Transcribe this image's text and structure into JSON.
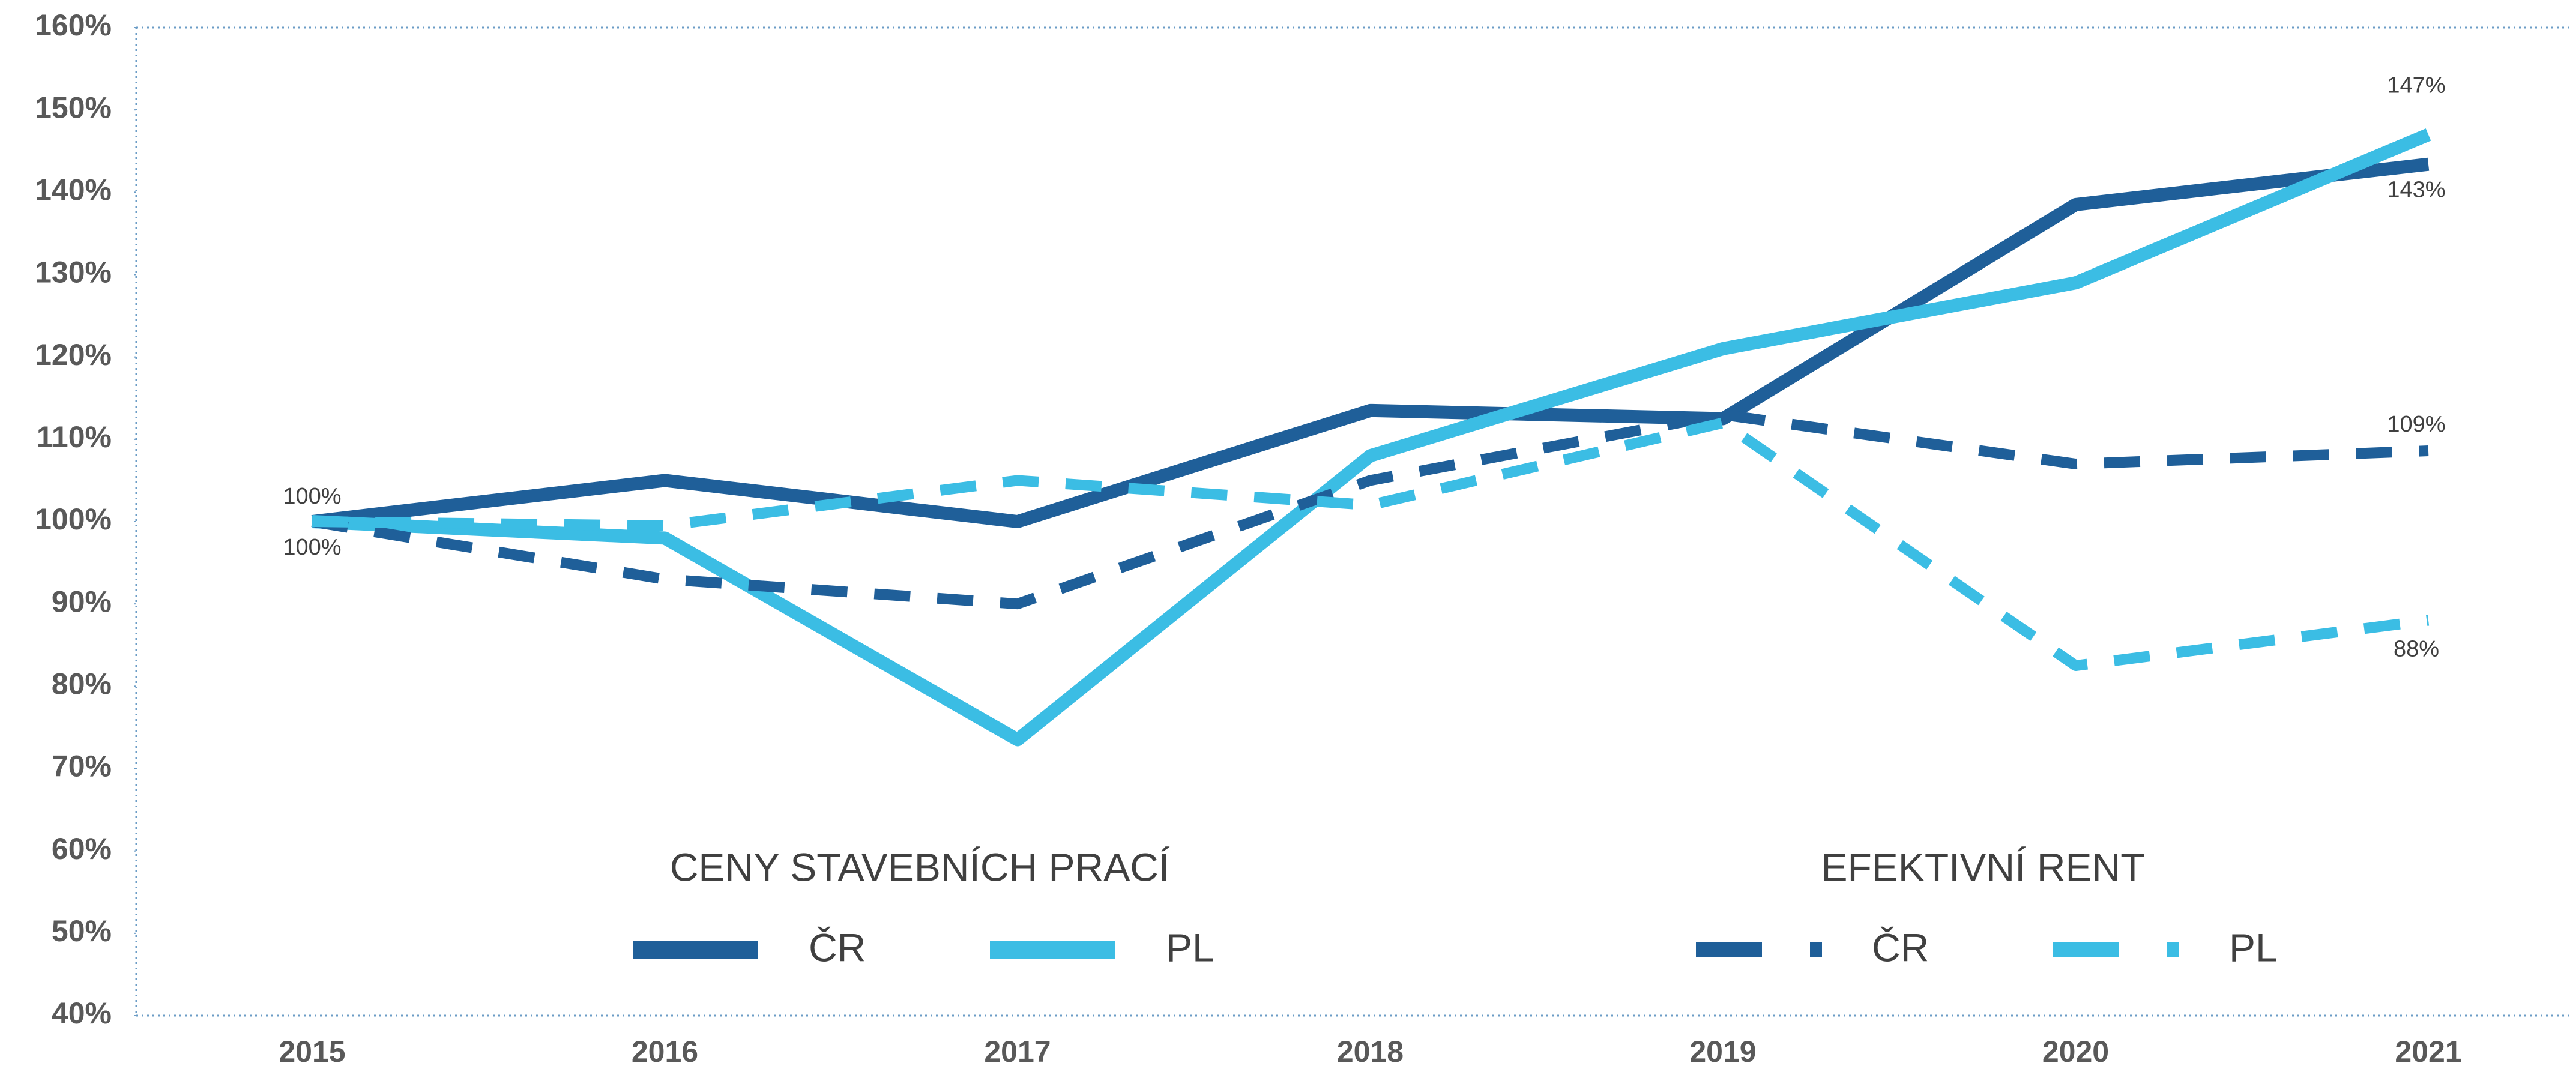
{
  "chart_data": {
    "type": "line",
    "categories": [
      "2015",
      "2016",
      "2017",
      "2018",
      "2019",
      "2020",
      "2021"
    ],
    "ylim": [
      40,
      160
    ],
    "yticks": [
      {
        "value": 40,
        "label": "40%"
      },
      {
        "value": 50,
        "label": "50%"
      },
      {
        "value": 60,
        "label": "60%"
      },
      {
        "value": 70,
        "label": "70%"
      },
      {
        "value": 80,
        "label": "80%"
      },
      {
        "value": 90,
        "label": "90%"
      },
      {
        "value": 100,
        "label": "100%"
      },
      {
        "value": 110,
        "label": "110%"
      },
      {
        "value": 120,
        "label": "120%"
      },
      {
        "value": 130,
        "label": "130%"
      },
      {
        "value": 140,
        "label": "140%"
      },
      {
        "value": 150,
        "label": "150%"
      },
      {
        "value": 160,
        "label": "160%"
      }
    ],
    "grid": false,
    "series_groups": [
      {
        "title": "CENY STAVEBNÍCH PRACÍ",
        "dashed": false,
        "series": [
          {
            "name": "ČR",
            "color": "#1f5f99",
            "values": [
              100,
              105,
              100,
              113.5,
              112.5,
              138.5,
              143.4
            ],
            "value_labels": [
              null,
              null,
              null,
              null,
              null,
              null,
              "143%"
            ]
          },
          {
            "name": "PL",
            "color": "#3bbde4",
            "values": [
              100,
              98,
              73.5,
              108,
              121,
              129,
              147
            ],
            "value_labels": [
              "100%",
              null,
              null,
              null,
              null,
              null,
              "147%"
            ]
          }
        ]
      },
      {
        "title": "EFEKTIVNÍ RENT",
        "dashed": true,
        "series": [
          {
            "name": "ČR",
            "color": "#1f5f99",
            "values": [
              100,
              93,
              90,
              105,
              113,
              107,
              108.6
            ],
            "value_labels": [
              "100%",
              null,
              null,
              null,
              null,
              null,
              "109%"
            ]
          },
          {
            "name": "PL",
            "color": "#3bbde4",
            "values": [
              100,
              99.5,
              105,
              102,
              112,
              82.5,
              88
            ],
            "value_labels": [
              null,
              null,
              null,
              null,
              null,
              null,
              "88%"
            ]
          }
        ]
      }
    ]
  }
}
